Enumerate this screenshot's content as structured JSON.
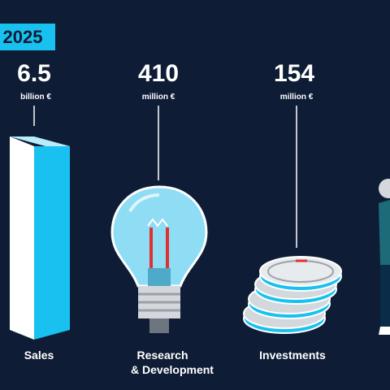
{
  "badge": {
    "year": "2025"
  },
  "figures": [
    {
      "value": 6.5,
      "unit": "billion €",
      "label": [
        "Sales"
      ]
    },
    {
      "value": 410,
      "unit": "million €",
      "label": [
        "Research",
        "& Development"
      ]
    },
    {
      "value": 154,
      "unit": "million €",
      "label": [
        "Investments"
      ]
    }
  ]
}
